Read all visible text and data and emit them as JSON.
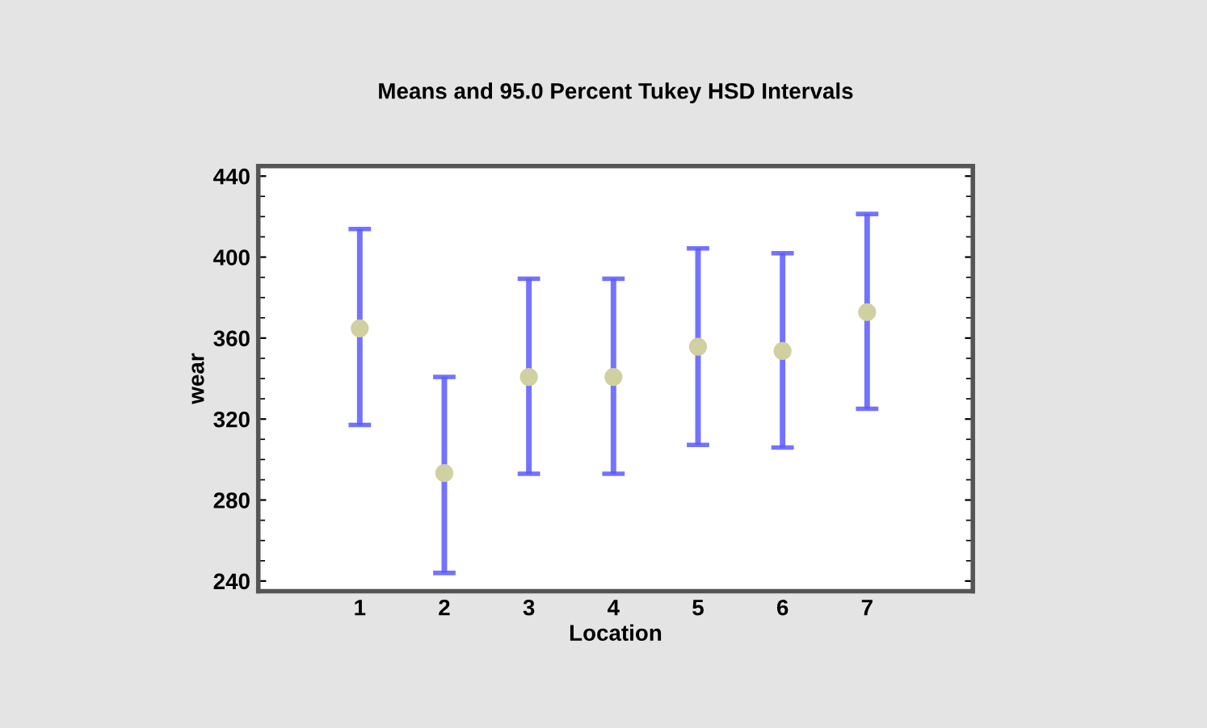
{
  "chart_data": {
    "type": "scatter",
    "title": "Means and 95.0 Percent Tukey HSD Intervals",
    "xlabel": "Location",
    "ylabel": "wear",
    "x": [
      1,
      2,
      3,
      4,
      5,
      6,
      7
    ],
    "series": [
      {
        "color": "#d0d0a0",
        "values": [
          364.8,
          293.3,
          340.8,
          340.8,
          355.7,
          353.6,
          372.8
        ],
        "errors": [
          [
            317.1,
            413.9
          ],
          [
            244,
            340.8
          ],
          [
            293,
            389.3
          ],
          [
            293,
            389.3
          ],
          [
            307.2,
            404.3
          ],
          [
            305.9,
            401.9
          ],
          [
            325.1,
            421.3
          ]
        ]
      }
    ],
    "xlim": [
      -0.2,
      8.25
    ],
    "xticks": [
      1,
      2,
      3,
      4,
      5,
      6,
      7
    ],
    "ylim": [
      235,
      445
    ],
    "yticks": [
      240,
      280,
      320,
      360,
      400,
      440
    ],
    "marker": "circle",
    "grid": false
  }
}
